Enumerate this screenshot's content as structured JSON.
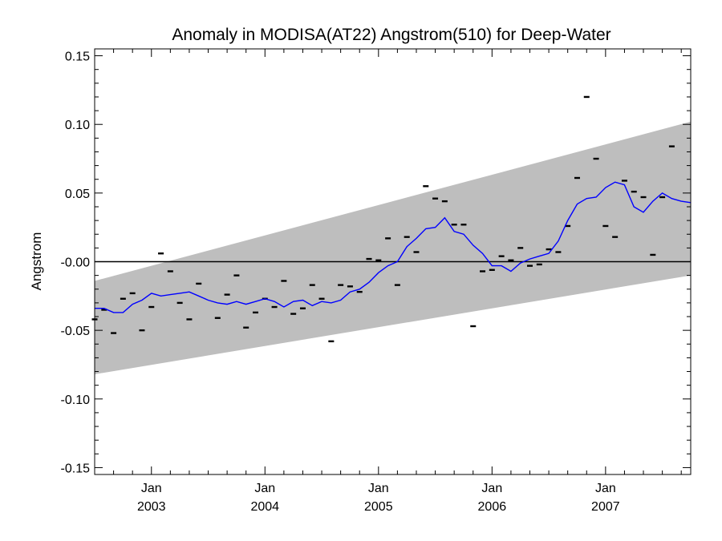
{
  "chart_data": {
    "type": "line",
    "title": "Anomaly in MODISA(AT22) Angstrom(510) for Deep-Water",
    "xlabel": "",
    "ylabel": "Angstrom",
    "x_range": [
      "2002-07",
      "2007-10"
    ],
    "ylim": [
      -0.155,
      0.155
    ],
    "y_ticks": [
      {
        "value": 0.15,
        "label": "0.15"
      },
      {
        "value": 0.1,
        "label": "0.10"
      },
      {
        "value": 0.05,
        "label": "0.05"
      },
      {
        "value": 0.0,
        "label": "-0.00"
      },
      {
        "value": -0.05,
        "label": "-0.05"
      },
      {
        "value": -0.1,
        "label": "-0.10"
      },
      {
        "value": -0.15,
        "label": "-0.15"
      }
    ],
    "x_ticks": [
      {
        "month": "Jan",
        "year": "2003",
        "date": "2003-01"
      },
      {
        "month": "Jan",
        "year": "2004",
        "date": "2004-01"
      },
      {
        "month": "Jan",
        "year": "2005",
        "date": "2005-01"
      },
      {
        "month": "Jan",
        "year": "2006",
        "date": "2006-01"
      },
      {
        "month": "Jan",
        "year": "2007",
        "date": "2007-01"
      }
    ],
    "grid": false,
    "zero_line": 0.0,
    "band": {
      "start": {
        "date": "2002-07",
        "low": -0.082,
        "high": -0.014
      },
      "end": {
        "date": "2007-10",
        "low": -0.01,
        "high": 0.102
      },
      "color": "#bebebe"
    },
    "series": [
      {
        "kind": "monthly",
        "marker": "dash",
        "color": "#000000",
        "points": [
          {
            "date": "2002-07",
            "value": -0.042
          },
          {
            "date": "2002-08",
            "value": -0.035
          },
          {
            "date": "2002-09",
            "value": -0.052
          },
          {
            "date": "2002-10",
            "value": -0.027
          },
          {
            "date": "2002-11",
            "value": -0.023
          },
          {
            "date": "2002-12",
            "value": -0.05
          },
          {
            "date": "2003-01",
            "value": -0.033
          },
          {
            "date": "2003-02",
            "value": 0.006
          },
          {
            "date": "2003-03",
            "value": -0.007
          },
          {
            "date": "2003-04",
            "value": -0.03
          },
          {
            "date": "2003-05",
            "value": -0.042
          },
          {
            "date": "2003-06",
            "value": -0.016
          },
          {
            "date": "2003-08",
            "value": -0.041
          },
          {
            "date": "2003-09",
            "value": -0.024
          },
          {
            "date": "2003-10",
            "value": -0.01
          },
          {
            "date": "2003-11",
            "value": -0.048
          },
          {
            "date": "2003-12",
            "value": -0.037
          },
          {
            "date": "2004-01",
            "value": -0.027
          },
          {
            "date": "2004-02",
            "value": -0.033
          },
          {
            "date": "2004-03",
            "value": -0.014
          },
          {
            "date": "2004-04",
            "value": -0.038
          },
          {
            "date": "2004-05",
            "value": -0.034
          },
          {
            "date": "2004-06",
            "value": -0.017
          },
          {
            "date": "2004-07",
            "value": -0.027
          },
          {
            "date": "2004-08",
            "value": -0.058
          },
          {
            "date": "2004-09",
            "value": -0.017
          },
          {
            "date": "2004-10",
            "value": -0.018
          },
          {
            "date": "2004-11",
            "value": -0.022
          },
          {
            "date": "2004-12",
            "value": 0.002
          },
          {
            "date": "2005-01",
            "value": 0.001
          },
          {
            "date": "2005-02",
            "value": 0.017
          },
          {
            "date": "2005-03",
            "value": -0.017
          },
          {
            "date": "2005-04",
            "value": 0.018
          },
          {
            "date": "2005-05",
            "value": 0.007
          },
          {
            "date": "2005-06",
            "value": 0.055
          },
          {
            "date": "2005-07",
            "value": 0.046
          },
          {
            "date": "2005-08",
            "value": 0.044
          },
          {
            "date": "2005-09",
            "value": 0.027
          },
          {
            "date": "2005-10",
            "value": 0.027
          },
          {
            "date": "2005-11",
            "value": -0.047
          },
          {
            "date": "2005-12",
            "value": -0.007
          },
          {
            "date": "2006-01",
            "value": -0.006
          },
          {
            "date": "2006-02",
            "value": 0.004
          },
          {
            "date": "2006-03",
            "value": 0.001
          },
          {
            "date": "2006-04",
            "value": 0.01
          },
          {
            "date": "2006-05",
            "value": -0.003
          },
          {
            "date": "2006-06",
            "value": -0.002
          },
          {
            "date": "2006-07",
            "value": 0.009
          },
          {
            "date": "2006-08",
            "value": 0.007
          },
          {
            "date": "2006-09",
            "value": 0.026
          },
          {
            "date": "2006-10",
            "value": 0.061
          },
          {
            "date": "2006-11",
            "value": 0.12
          },
          {
            "date": "2006-12",
            "value": 0.075
          },
          {
            "date": "2007-01",
            "value": 0.026
          },
          {
            "date": "2007-02",
            "value": 0.018
          },
          {
            "date": "2007-03",
            "value": 0.059
          },
          {
            "date": "2007-04",
            "value": 0.051
          },
          {
            "date": "2007-05",
            "value": 0.047
          },
          {
            "date": "2007-06",
            "value": 0.005
          },
          {
            "date": "2007-07",
            "value": 0.047
          },
          {
            "date": "2007-08",
            "value": 0.084
          }
        ]
      },
      {
        "kind": "smoothed",
        "marker": "line",
        "color": "#0000ff",
        "points": [
          {
            "date": "2002-07",
            "value": -0.034
          },
          {
            "date": "2002-08",
            "value": -0.034
          },
          {
            "date": "2002-09",
            "value": -0.037
          },
          {
            "date": "2002-10",
            "value": -0.037
          },
          {
            "date": "2002-11",
            "value": -0.031
          },
          {
            "date": "2002-12",
            "value": -0.028
          },
          {
            "date": "2003-01",
            "value": -0.023
          },
          {
            "date": "2003-02",
            "value": -0.025
          },
          {
            "date": "2003-03",
            "value": -0.024
          },
          {
            "date": "2003-04",
            "value": -0.023
          },
          {
            "date": "2003-05",
            "value": -0.022
          },
          {
            "date": "2003-06",
            "value": -0.025
          },
          {
            "date": "2003-07",
            "value": -0.028
          },
          {
            "date": "2003-08",
            "value": -0.03
          },
          {
            "date": "2003-09",
            "value": -0.031
          },
          {
            "date": "2003-10",
            "value": -0.029
          },
          {
            "date": "2003-11",
            "value": -0.031
          },
          {
            "date": "2003-12",
            "value": -0.029
          },
          {
            "date": "2004-01",
            "value": -0.027
          },
          {
            "date": "2004-02",
            "value": -0.029
          },
          {
            "date": "2004-03",
            "value": -0.033
          },
          {
            "date": "2004-04",
            "value": -0.029
          },
          {
            "date": "2004-05",
            "value": -0.028
          },
          {
            "date": "2004-06",
            "value": -0.032
          },
          {
            "date": "2004-07",
            "value": -0.029
          },
          {
            "date": "2004-08",
            "value": -0.03
          },
          {
            "date": "2004-09",
            "value": -0.028
          },
          {
            "date": "2004-10",
            "value": -0.022
          },
          {
            "date": "2004-11",
            "value": -0.02
          },
          {
            "date": "2004-12",
            "value": -0.015
          },
          {
            "date": "2005-01",
            "value": -0.008
          },
          {
            "date": "2005-02",
            "value": -0.003
          },
          {
            "date": "2005-03",
            "value": 0.0
          },
          {
            "date": "2005-04",
            "value": 0.011
          },
          {
            "date": "2005-05",
            "value": 0.017
          },
          {
            "date": "2005-06",
            "value": 0.024
          },
          {
            "date": "2005-07",
            "value": 0.025
          },
          {
            "date": "2005-08",
            "value": 0.032
          },
          {
            "date": "2005-09",
            "value": 0.022
          },
          {
            "date": "2005-10",
            "value": 0.02
          },
          {
            "date": "2005-11",
            "value": 0.012
          },
          {
            "date": "2005-12",
            "value": 0.006
          },
          {
            "date": "2006-01",
            "value": -0.003
          },
          {
            "date": "2006-02",
            "value": -0.003
          },
          {
            "date": "2006-03",
            "value": -0.007
          },
          {
            "date": "2006-04",
            "value": -0.001
          },
          {
            "date": "2006-05",
            "value": 0.002
          },
          {
            "date": "2006-06",
            "value": 0.004
          },
          {
            "date": "2006-07",
            "value": 0.006
          },
          {
            "date": "2006-08",
            "value": 0.015
          },
          {
            "date": "2006-09",
            "value": 0.03
          },
          {
            "date": "2006-10",
            "value": 0.042
          },
          {
            "date": "2006-11",
            "value": 0.046
          },
          {
            "date": "2006-12",
            "value": 0.047
          },
          {
            "date": "2007-01",
            "value": 0.054
          },
          {
            "date": "2007-02",
            "value": 0.058
          },
          {
            "date": "2007-03",
            "value": 0.056
          },
          {
            "date": "2007-04",
            "value": 0.04
          },
          {
            "date": "2007-05",
            "value": 0.036
          },
          {
            "date": "2007-06",
            "value": 0.044
          },
          {
            "date": "2007-07",
            "value": 0.05
          },
          {
            "date": "2007-08",
            "value": 0.046
          },
          {
            "date": "2007-09",
            "value": 0.044
          },
          {
            "date": "2007-10",
            "value": 0.043
          }
        ]
      }
    ]
  }
}
